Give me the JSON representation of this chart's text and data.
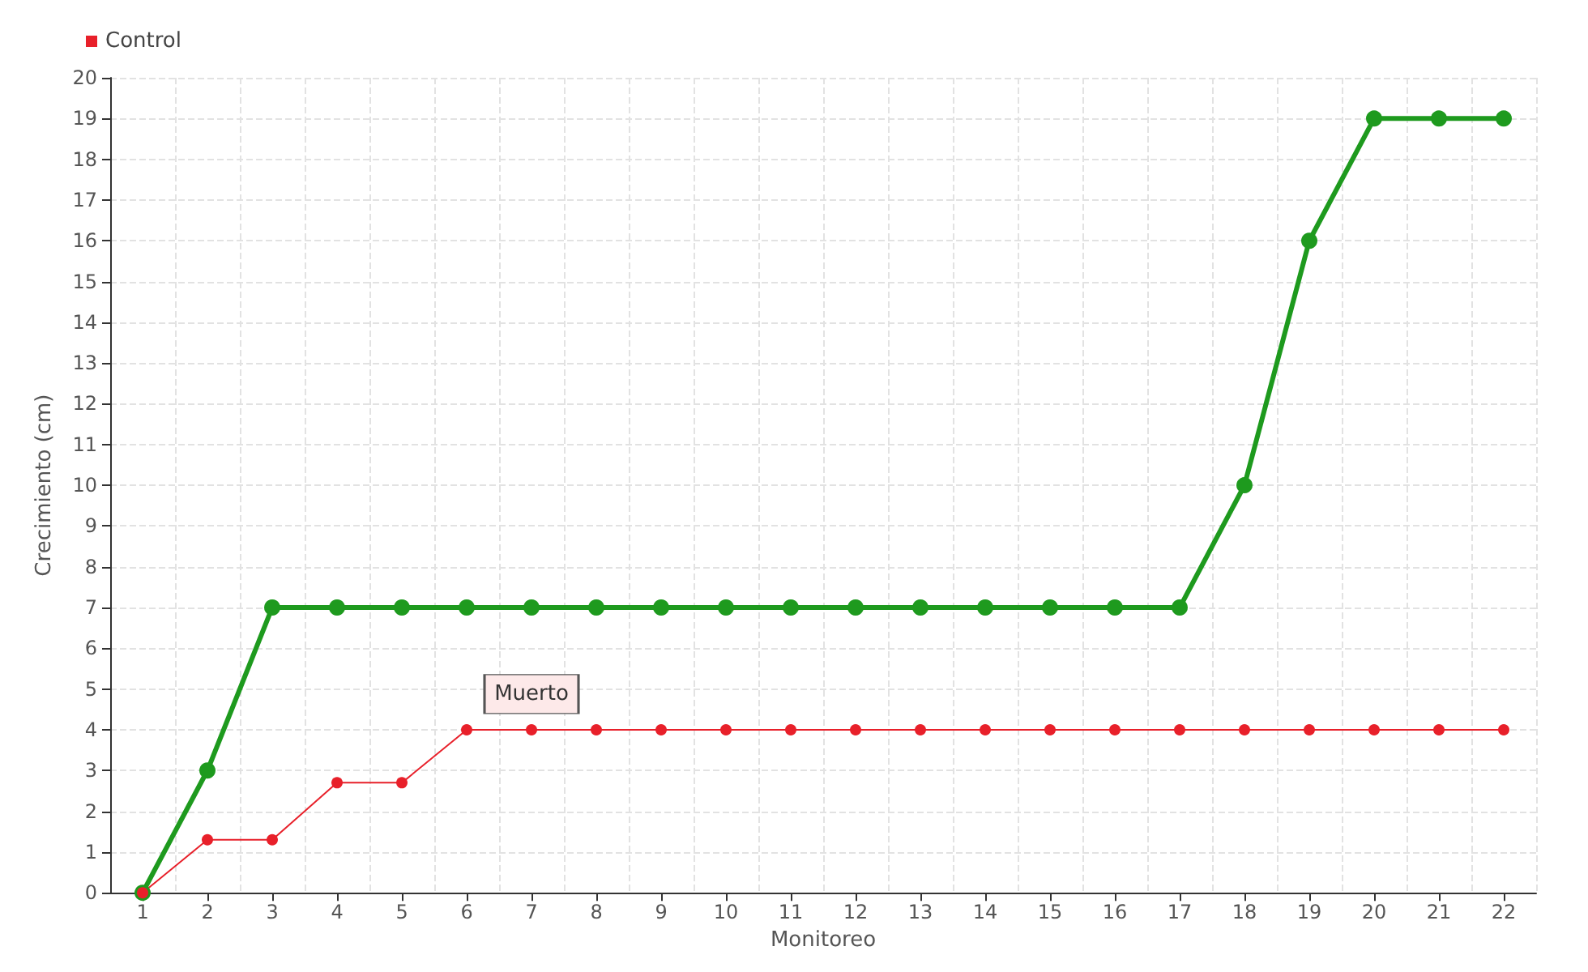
{
  "chart_data": {
    "type": "line",
    "xlabel": "Monitoreo",
    "ylabel": "Crecimiento (cm)",
    "categories": [
      "1",
      "2",
      "3",
      "4",
      "5",
      "6",
      "7",
      "8",
      "9",
      "10",
      "11",
      "12",
      "13",
      "14",
      "15",
      "16",
      "17",
      "18",
      "19",
      "20",
      "21",
      "22"
    ],
    "series": [
      {
        "color": "#1e9a1e",
        "values": [
          0,
          3,
          7,
          7,
          7,
          7,
          7,
          7,
          7,
          7,
          7,
          7,
          7,
          7,
          7,
          7,
          7,
          10,
          16,
          19,
          19,
          19
        ]
      },
      {
        "name": "Control",
        "color": "#e8202a",
        "values": [
          0,
          1.3,
          1.3,
          2.7,
          2.7,
          4,
          4,
          4,
          4,
          4,
          4,
          4,
          4,
          4,
          4,
          4,
          4,
          4,
          4,
          4,
          4,
          4
        ]
      }
    ],
    "ylim": [
      0,
      20
    ],
    "yticks": [
      0,
      1,
      2,
      3,
      4,
      5,
      6,
      7,
      8,
      9,
      10,
      11,
      12,
      13,
      14,
      15,
      16,
      17,
      18,
      19,
      20
    ],
    "grid": true,
    "legend": "top left",
    "marker": "circle",
    "annotations": [
      {
        "text": "Muerto",
        "x": "7",
        "y": 4
      }
    ]
  }
}
